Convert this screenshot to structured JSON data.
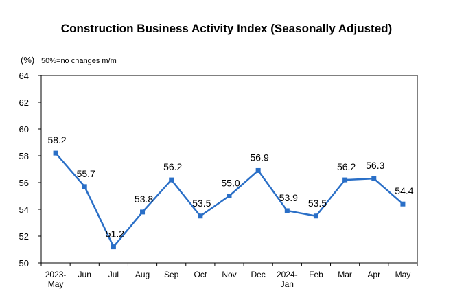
{
  "chart_data": {
    "type": "line",
    "title": "Construction Business Activity Index (Seasonally Adjusted)",
    "unit_label": "(%)",
    "note": "50%=no changes m/m",
    "ylim": [
      50,
      64
    ],
    "yticks": [
      50,
      52,
      54,
      56,
      58,
      60,
      62,
      64
    ],
    "categories": [
      [
        "2023-",
        "May"
      ],
      [
        "Jun"
      ],
      [
        "Jul"
      ],
      [
        "Aug"
      ],
      [
        "Sep"
      ],
      [
        "Oct"
      ],
      [
        "Nov"
      ],
      [
        "Dec"
      ],
      [
        "2024-",
        "Jan"
      ],
      [
        "Feb"
      ],
      [
        "Mar"
      ],
      [
        "Apr"
      ],
      [
        "May"
      ]
    ],
    "values": [
      58.2,
      55.7,
      51.2,
      53.8,
      56.2,
      53.5,
      55.0,
      56.9,
      53.9,
      53.5,
      56.2,
      56.3,
      54.4
    ],
    "data_labels": [
      "58.2",
      "55.7",
      "51.2",
      "53.8",
      "56.2",
      "53.5",
      "55.0",
      "56.9",
      "53.9",
      "53.5",
      "56.2",
      "56.3",
      "54.4"
    ],
    "line_color": "#2a6fc7",
    "grid": false,
    "legend": "none"
  }
}
